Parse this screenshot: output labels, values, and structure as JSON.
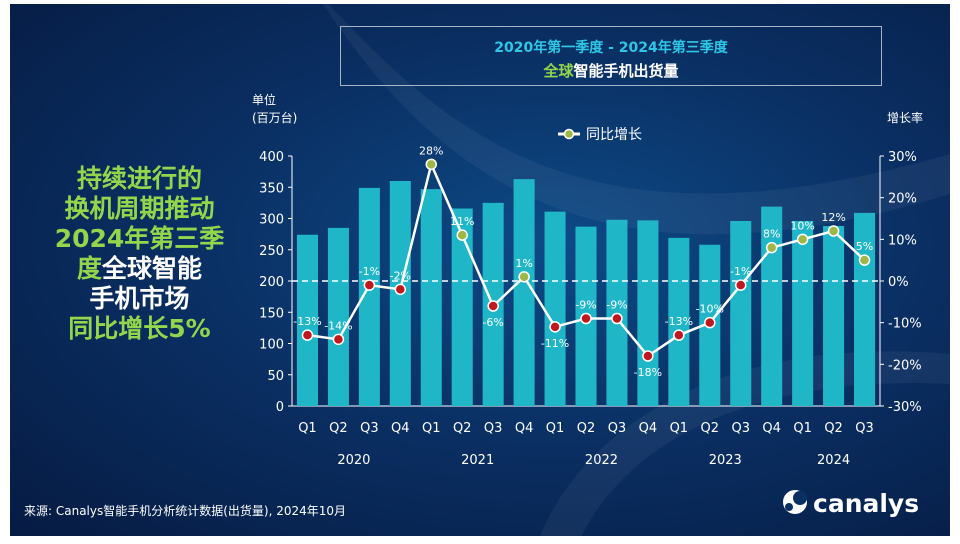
{
  "header": {
    "period": "2020年第一季度 - 2024年第三季度",
    "subtitle_green": "全球",
    "subtitle_rest": "智能手机出货量"
  },
  "side_text": {
    "line1": "持续进行的",
    "line2": "换机周期推动",
    "line3": "2024年第三季",
    "line4_green": "度",
    "line4_white": "全球智能",
    "line5": "手机市场",
    "line6": "同比增长5%"
  },
  "footer": {
    "source": "来源: Canalys智能手机分析统计数据(出货量), 2024年10月",
    "logo": "canalys"
  },
  "colors": {
    "bar": "#1fb6c8",
    "line": "#ffffff",
    "marker_red": "#c0181e",
    "marker_green": "#9fb845",
    "accent_green": "#93d64c",
    "accent_cyan": "#2ec8e6"
  },
  "chart_data": {
    "type": "bar",
    "title": "全球智能手机出货量",
    "ylabel_line1": "单位",
    "ylabel_line2": "(百万台)",
    "y2label": "增长率",
    "legend_label": "同比增长",
    "ylim": [
      0,
      400
    ],
    "y2lim": [
      -30,
      30
    ],
    "y_ticks": [
      "0",
      "50",
      "100",
      "150",
      "200",
      "250",
      "300",
      "350",
      "400"
    ],
    "y2_ticks": [
      "-30%",
      "-20%",
      "-10%",
      "0%",
      "10%",
      "20%",
      "30%"
    ],
    "categories": [
      "Q1",
      "Q2",
      "Q3",
      "Q4",
      "Q1",
      "Q2",
      "Q3",
      "Q4",
      "Q1",
      "Q2",
      "Q3",
      "Q4",
      "Q1",
      "Q2",
      "Q3",
      "Q4",
      "Q1",
      "Q2",
      "Q3"
    ],
    "years": [
      {
        "label": "2020",
        "from": 0,
        "to": 3
      },
      {
        "label": "2021",
        "from": 4,
        "to": 7
      },
      {
        "label": "2022",
        "from": 8,
        "to": 11
      },
      {
        "label": "2023",
        "from": 12,
        "to": 15
      },
      {
        "label": "2024",
        "from": 16,
        "to": 18
      }
    ],
    "series": [
      {
        "type": "bar",
        "values": [
          274,
          285,
          349,
          360,
          347,
          316,
          325,
          363,
          311,
          287,
          298,
          297,
          269,
          258,
          296,
          319,
          296,
          288,
          309
        ]
      },
      {
        "type": "line",
        "name": "同比增长",
        "values": [
          -13,
          -14,
          -1,
          -2,
          28,
          11,
          -6,
          1,
          -11,
          -9,
          -9,
          -18,
          -13,
          -10,
          -1,
          8,
          10,
          12,
          5
        ],
        "labels": [
          "-13%",
          "-14%",
          "-1%",
          "-2%",
          "28%",
          "11%",
          "-6%",
          "1%",
          "-11%",
          "-9%",
          "-9%",
          "-18%",
          "-13%",
          "-10%",
          "-1%",
          "8%",
          "10%",
          "12%",
          "5%"
        ]
      }
    ],
    "zero_line": "dashed",
    "legend_position": "top-center"
  }
}
